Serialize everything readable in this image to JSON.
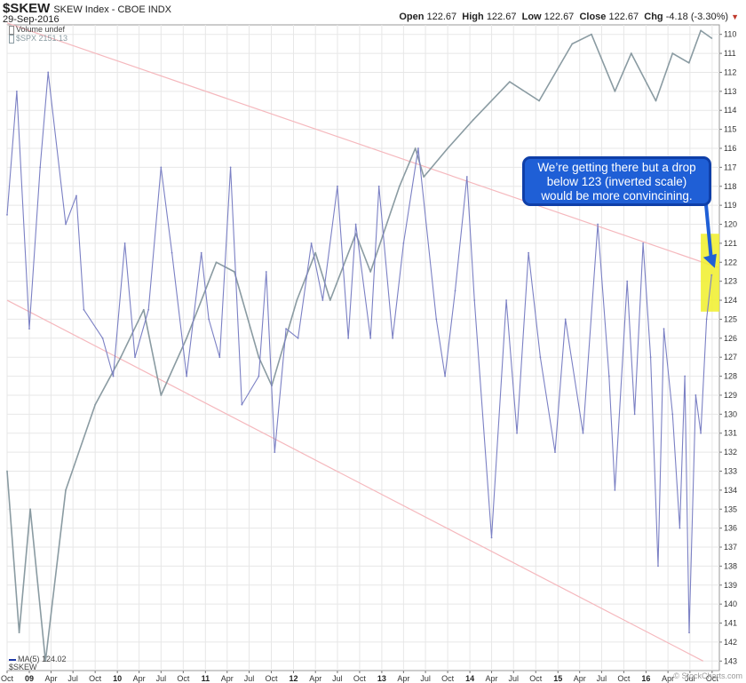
{
  "header": {
    "symbol": "$SKEW",
    "name": "SKEW Index - CBOE INDX",
    "date": "29-Sep-2016",
    "open_label": "Open",
    "open": "122.67",
    "high_label": "High",
    "high": "122.67",
    "low_label": "Low",
    "low": "122.67",
    "close_label": "Close",
    "close": "122.67",
    "chg_label": "Chg",
    "chg": "-4.18 (-3.30%)",
    "chg_arrow": "▼"
  },
  "legend": {
    "volume": "Volume undef",
    "spx": "$SPX 2151.13",
    "ma": "MA(5) 124.02",
    "skew": "$SKEW"
  },
  "annotation": {
    "text_lines": [
      "We’re getting there but a drop",
      "below 123 (inverted scale)",
      "would be more convincining."
    ]
  },
  "watermark": "© StockCharts.com",
  "colors": {
    "skew_line": "#7b80c4",
    "spx_line": "#8a9ba2",
    "trend_line": "#f5b8bd",
    "highlight": "#f0ef2a",
    "callout_fill": "#1f5fd6",
    "grid": "#e7e7e7"
  },
  "chart_data": {
    "type": "line",
    "y_axis": {
      "inverted": true,
      "range": [
        109.5,
        143.5
      ],
      "side": "right",
      "ticks": [
        "110",
        "111",
        "112",
        "113",
        "114",
        "115",
        "116",
        "117",
        "118",
        "119",
        "120",
        "121",
        "122",
        "123",
        "124",
        "125",
        "126",
        "127",
        "128",
        "129",
        "130",
        "131",
        "132",
        "133",
        "134",
        "135",
        "136",
        "137",
        "138",
        "139",
        "140",
        "141",
        "142",
        "143"
      ],
      "tick_values": [
        110,
        111,
        112,
        113,
        114,
        115,
        116,
        117,
        118,
        119,
        120,
        121,
        122,
        123,
        124,
        125,
        126,
        127,
        128,
        129,
        130,
        131,
        132,
        133,
        134,
        135,
        136,
        137,
        138,
        139,
        140,
        141,
        142,
        143
      ]
    },
    "x_axis": {
      "range": [
        "2008-10-01",
        "2016-10-31"
      ],
      "ticks": [
        {
          "label": "Oct",
          "date": "2008-10-01",
          "bold": false
        },
        {
          "label": "09",
          "date": "2009-01-01",
          "bold": true
        },
        {
          "label": "Apr",
          "date": "2009-04-01",
          "bold": false
        },
        {
          "label": "Jul",
          "date": "2009-07-01",
          "bold": false
        },
        {
          "label": "Oct",
          "date": "2009-10-01",
          "bold": false
        },
        {
          "label": "10",
          "date": "2010-01-01",
          "bold": true
        },
        {
          "label": "Apr",
          "date": "2010-04-01",
          "bold": false
        },
        {
          "label": "Jul",
          "date": "2010-07-01",
          "bold": false
        },
        {
          "label": "Oct",
          "date": "2010-10-01",
          "bold": false
        },
        {
          "label": "11",
          "date": "2011-01-01",
          "bold": true
        },
        {
          "label": "Apr",
          "date": "2011-04-01",
          "bold": false
        },
        {
          "label": "Jul",
          "date": "2011-07-01",
          "bold": false
        },
        {
          "label": "Oct",
          "date": "2011-10-01",
          "bold": false
        },
        {
          "label": "12",
          "date": "2012-01-01",
          "bold": true
        },
        {
          "label": "Apr",
          "date": "2012-04-01",
          "bold": false
        },
        {
          "label": "Jul",
          "date": "2012-07-01",
          "bold": false
        },
        {
          "label": "Oct",
          "date": "2012-10-01",
          "bold": false
        },
        {
          "label": "13",
          "date": "2013-01-01",
          "bold": true
        },
        {
          "label": "Apr",
          "date": "2013-04-01",
          "bold": false
        },
        {
          "label": "Jul",
          "date": "2013-07-01",
          "bold": false
        },
        {
          "label": "Oct",
          "date": "2013-10-01",
          "bold": false
        },
        {
          "label": "14",
          "date": "2014-01-01",
          "bold": true
        },
        {
          "label": "Apr",
          "date": "2014-04-01",
          "bold": false
        },
        {
          "label": "Jul",
          "date": "2014-07-01",
          "bold": false
        },
        {
          "label": "Oct",
          "date": "2014-10-01",
          "bold": false
        },
        {
          "label": "15",
          "date": "2015-01-01",
          "bold": true
        },
        {
          "label": "Apr",
          "date": "2015-04-01",
          "bold": false
        },
        {
          "label": "Jul",
          "date": "2015-07-01",
          "bold": false
        },
        {
          "label": "Oct",
          "date": "2015-10-01",
          "bold": false
        },
        {
          "label": "16",
          "date": "2016-01-01",
          "bold": true
        },
        {
          "label": "Apr",
          "date": "2016-04-01",
          "bold": false
        },
        {
          "label": "Jul",
          "date": "2016-07-01",
          "bold": false
        },
        {
          "label": "Oct",
          "date": "2016-10-01",
          "bold": false
        }
      ]
    },
    "grid": true,
    "series": [
      {
        "name": "MA(5) 124.02",
        "color": "#7b80c4",
        "x": [
          "2008-10-01",
          "2008-11-10",
          "2009-01-01",
          "2009-02-15",
          "2009-03-20",
          "2009-06-01",
          "2009-07-15",
          "2009-08-15",
          "2009-11-01",
          "2009-12-15",
          "2010-02-01",
          "2010-03-15",
          "2010-05-10",
          "2010-07-01",
          "2010-08-15",
          "2010-10-15",
          "2010-12-15",
          "2011-01-15",
          "2011-03-01",
          "2011-04-15",
          "2011-06-01",
          "2011-08-10",
          "2011-09-10",
          "2011-10-15",
          "2011-12-01",
          "2012-01-20",
          "2012-03-15",
          "2012-05-01",
          "2012-07-01",
          "2012-08-15",
          "2012-09-15",
          "2012-11-15",
          "2012-12-20",
          "2013-02-15",
          "2013-04-01",
          "2013-06-01",
          "2013-08-15",
          "2013-09-20",
          "2013-11-01",
          "2013-12-20",
          "2014-01-20",
          "2014-04-01",
          "2014-06-01",
          "2014-07-15",
          "2014-09-01",
          "2014-10-20",
          "2014-12-20",
          "2015-02-01",
          "2015-04-15",
          "2015-06-15",
          "2015-08-01",
          "2015-08-25",
          "2015-10-15",
          "2015-11-15",
          "2015-12-20",
          "2016-01-20",
          "2016-02-20",
          "2016-03-15",
          "2016-04-20",
          "2016-05-20",
          "2016-06-10",
          "2016-06-28",
          "2016-07-25",
          "2016-08-15",
          "2016-09-08",
          "2016-09-29"
        ],
        "y": [
          119.5,
          113.0,
          125.5,
          117.0,
          112.0,
          120.0,
          118.5,
          124.5,
          126.0,
          128.0,
          121.0,
          127.0,
          124.5,
          117.0,
          121.5,
          128.0,
          121.5,
          125.0,
          127.0,
          117.0,
          129.5,
          128.0,
          122.5,
          132.0,
          125.5,
          126.0,
          121.0,
          124.0,
          118.0,
          126.0,
          120.0,
          126.0,
          118.0,
          126.0,
          121.0,
          116.0,
          125.0,
          128.0,
          123.5,
          117.5,
          124.0,
          136.5,
          124.0,
          131.0,
          121.5,
          127.0,
          132.0,
          125.0,
          131.0,
          120.0,
          128.0,
          134.0,
          123.0,
          130.0,
          121.0,
          127.0,
          138.0,
          125.5,
          130.0,
          136.0,
          128.0,
          141.5,
          129.0,
          131.0,
          125.0,
          122.67
        ]
      },
      {
        "name": "$SPX 2151.13",
        "color": "#8a9ba2",
        "x": [
          "2008-10-01",
          "2008-11-20",
          "2009-01-05",
          "2009-03-09",
          "2009-06-01",
          "2009-10-01",
          "2010-01-15",
          "2010-04-20",
          "2010-07-01",
          "2010-10-15",
          "2011-02-15",
          "2011-05-01",
          "2011-08-10",
          "2011-10-03",
          "2012-01-15",
          "2012-04-01",
          "2012-06-01",
          "2012-09-15",
          "2012-11-15",
          "2013-03-15",
          "2013-05-20",
          "2013-06-24",
          "2013-10-01",
          "2014-01-15",
          "2014-06-15",
          "2014-10-15",
          "2015-03-01",
          "2015-05-20",
          "2015-08-25",
          "2015-11-01",
          "2016-02-11",
          "2016-04-20",
          "2016-06-27",
          "2016-08-15",
          "2016-09-29"
        ],
        "y": [
          133.0,
          141.5,
          135.0,
          143.0,
          134.0,
          129.5,
          127.0,
          124.5,
          129.0,
          126.0,
          122.0,
          122.5,
          127.0,
          128.5,
          124.0,
          121.5,
          124.0,
          120.5,
          122.5,
          118.0,
          116.0,
          117.5,
          116.0,
          114.5,
          112.5,
          113.5,
          110.5,
          110.0,
          113.0,
          111.0,
          113.5,
          111.0,
          111.5,
          109.8,
          110.2
        ]
      }
    ],
    "trend_lines": [
      {
        "x": [
          "2008-10-01",
          "2016-10-31"
        ],
        "y": [
          109.4,
          122.3
        ]
      },
      {
        "x": [
          "2008-10-01",
          "2016-08-25"
        ],
        "y": [
          124.0,
          143.0
        ]
      }
    ],
    "highlight": {
      "x": [
        "2016-08-15",
        "2016-10-31"
      ],
      "y": [
        120.5,
        124.6
      ]
    },
    "arrow": {
      "from": {
        "x": "2016-08-22",
        "y": 117.0
      },
      "to": {
        "x": "2016-10-12",
        "y": 122.3
      }
    }
  }
}
